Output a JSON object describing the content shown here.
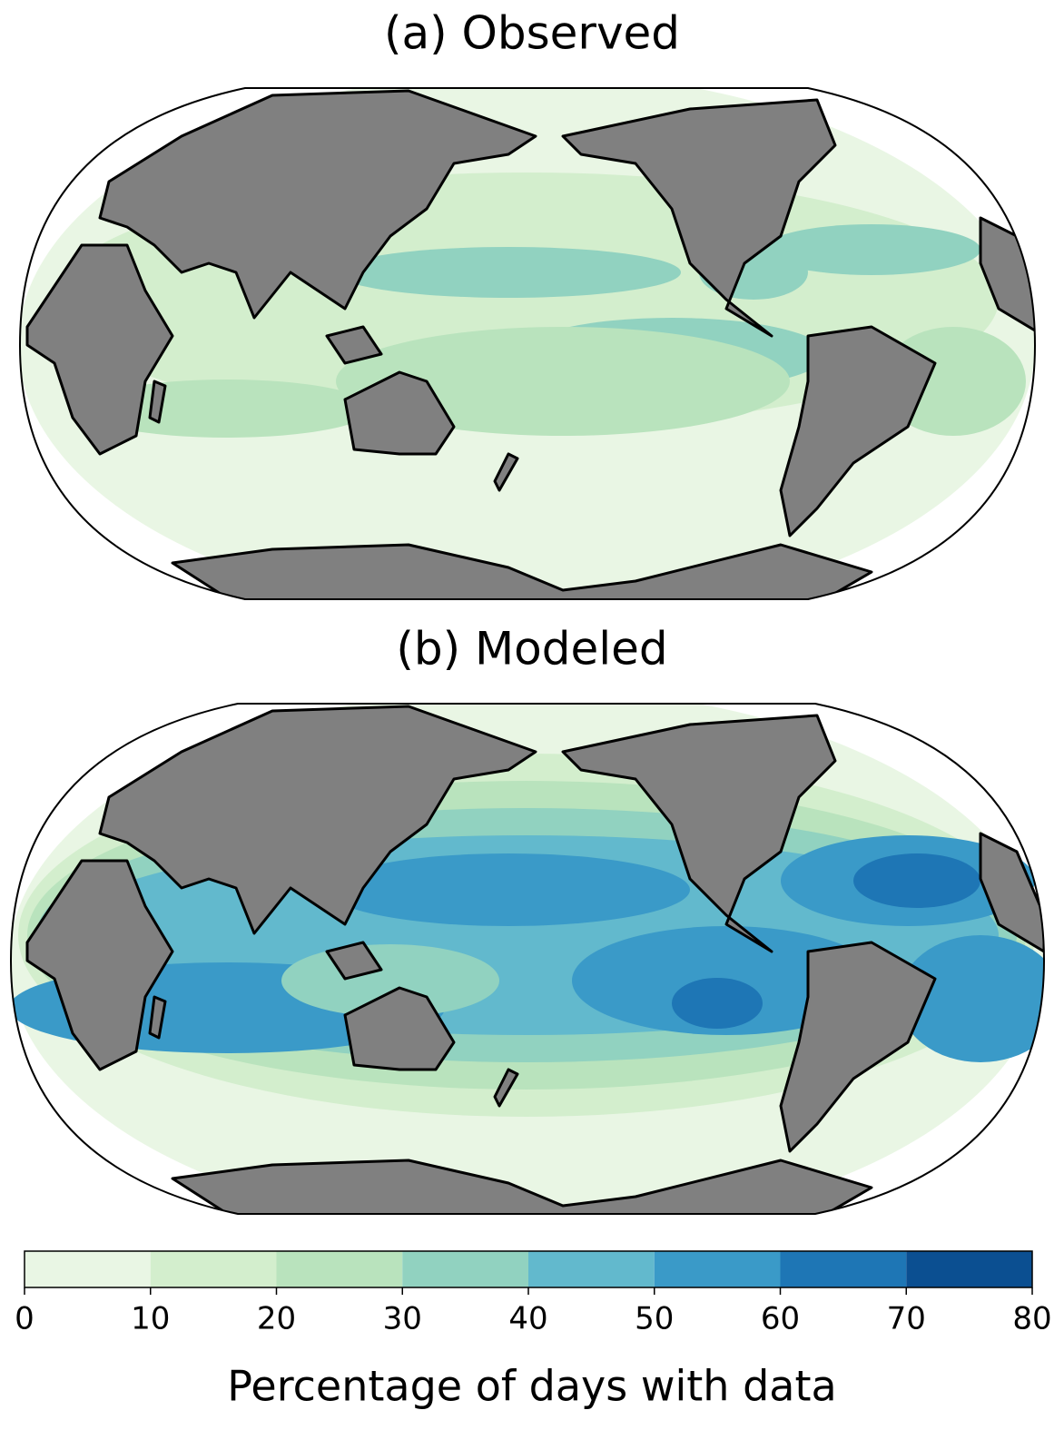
{
  "panels": [
    {
      "title": "(a) Observed"
    },
    {
      "title": "(b) Modeled"
    }
  ],
  "colorbar": {
    "label": "Percentage of days with data",
    "lim": [
      0,
      80
    ],
    "ticks": [
      0,
      10,
      20,
      30,
      40,
      50,
      60,
      70,
      80
    ],
    "colors": [
      "#e9f6e4",
      "#d3eecd",
      "#b9e3bd",
      "#91d2c0",
      "#62b9cd",
      "#3a9ac8",
      "#1e76b5",
      "#0b4f91"
    ]
  },
  "land_color": "#808080"
}
